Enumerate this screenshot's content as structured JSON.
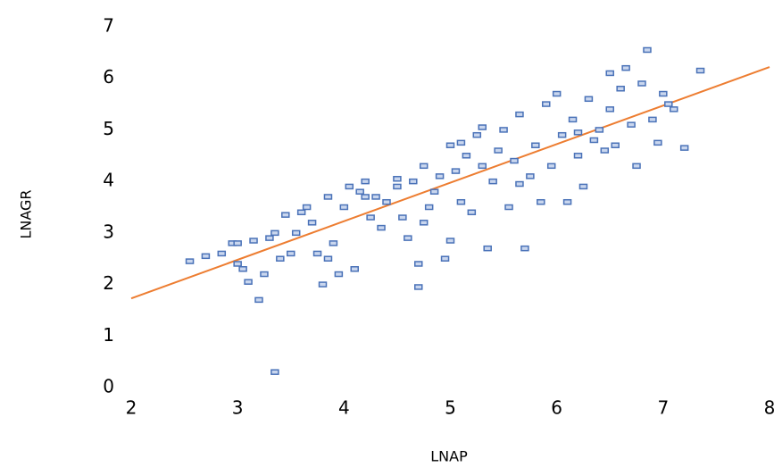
{
  "chart_data": {
    "type": "scatter",
    "x_label": "LNAP",
    "y_label": "LNAGR",
    "xlim": [
      2,
      8
    ],
    "ylim": [
      0,
      7
    ],
    "xticks": [
      2,
      3,
      4,
      5,
      6,
      7,
      8
    ],
    "yticks": [
      0,
      1,
      2,
      3,
      4,
      5,
      6,
      7
    ],
    "color": "#4a72b8",
    "grid": false,
    "x": [
      2.55,
      2.7,
      2.85,
      2.95,
      3.0,
      3.05,
      3.1,
      3.15,
      3.2,
      3.25,
      3.3,
      3.35,
      3.4,
      3.45,
      3.35,
      3.5,
      3.55,
      3.6,
      3.65,
      3.7,
      3.75,
      3.8,
      3.85,
      3.9,
      3.95,
      4.0,
      4.05,
      4.1,
      4.15,
      4.2,
      4.25,
      4.3,
      4.35,
      4.4,
      4.5,
      4.55,
      4.6,
      4.65,
      4.7,
      4.7,
      4.75,
      4.8,
      4.85,
      4.9,
      4.95,
      5.0,
      5.0,
      5.05,
      5.1,
      5.15,
      5.2,
      5.25,
      5.3,
      5.35,
      5.4,
      5.45,
      5.5,
      5.55,
      5.6,
      5.65,
      5.7,
      5.75,
      5.8,
      5.85,
      5.9,
      5.95,
      6.0,
      6.05,
      6.1,
      6.15,
      6.2,
      6.25,
      6.3,
      6.35,
      6.4,
      6.45,
      6.5,
      6.55,
      6.6,
      6.65,
      6.7,
      6.75,
      6.8,
      6.85,
      6.9,
      6.95,
      7.0,
      7.05,
      7.1,
      7.2,
      7.35,
      6.5,
      5.3,
      4.2,
      3.85,
      4.75,
      5.65,
      6.2,
      5.1,
      3.0,
      4.5
    ],
    "y": [
      2.45,
      2.55,
      2.6,
      2.8,
      2.4,
      2.3,
      2.05,
      2.85,
      1.7,
      2.2,
      2.9,
      3.0,
      2.5,
      3.35,
      0.3,
      2.6,
      3.0,
      3.4,
      3.5,
      3.2,
      2.6,
      2.0,
      3.7,
      2.8,
      2.2,
      3.5,
      3.9,
      2.3,
      3.8,
      4.0,
      3.3,
      3.7,
      3.1,
      3.6,
      3.9,
      3.3,
      2.9,
      4.0,
      1.95,
      2.4,
      4.3,
      3.5,
      3.8,
      4.1,
      2.5,
      2.85,
      4.7,
      4.2,
      3.6,
      4.5,
      3.4,
      4.9,
      4.3,
      2.7,
      4.0,
      4.6,
      5.0,
      3.5,
      4.4,
      5.3,
      2.7,
      4.1,
      4.7,
      3.6,
      5.5,
      4.3,
      5.7,
      4.9,
      3.6,
      5.2,
      4.5,
      3.9,
      5.6,
      4.8,
      5.0,
      4.6,
      5.4,
      4.7,
      5.8,
      6.2,
      5.1,
      4.3,
      5.9,
      6.55,
      5.2,
      4.75,
      5.7,
      5.5,
      5.4,
      4.65,
      6.15,
      6.1,
      5.05,
      3.7,
      2.5,
      3.2,
      3.95,
      4.95,
      4.75,
      2.8,
      4.05
    ],
    "trendline": {
      "x": [
        2,
        8
      ],
      "y": [
        1.73,
        6.22
      ],
      "color": "#ed7d31"
    }
  }
}
